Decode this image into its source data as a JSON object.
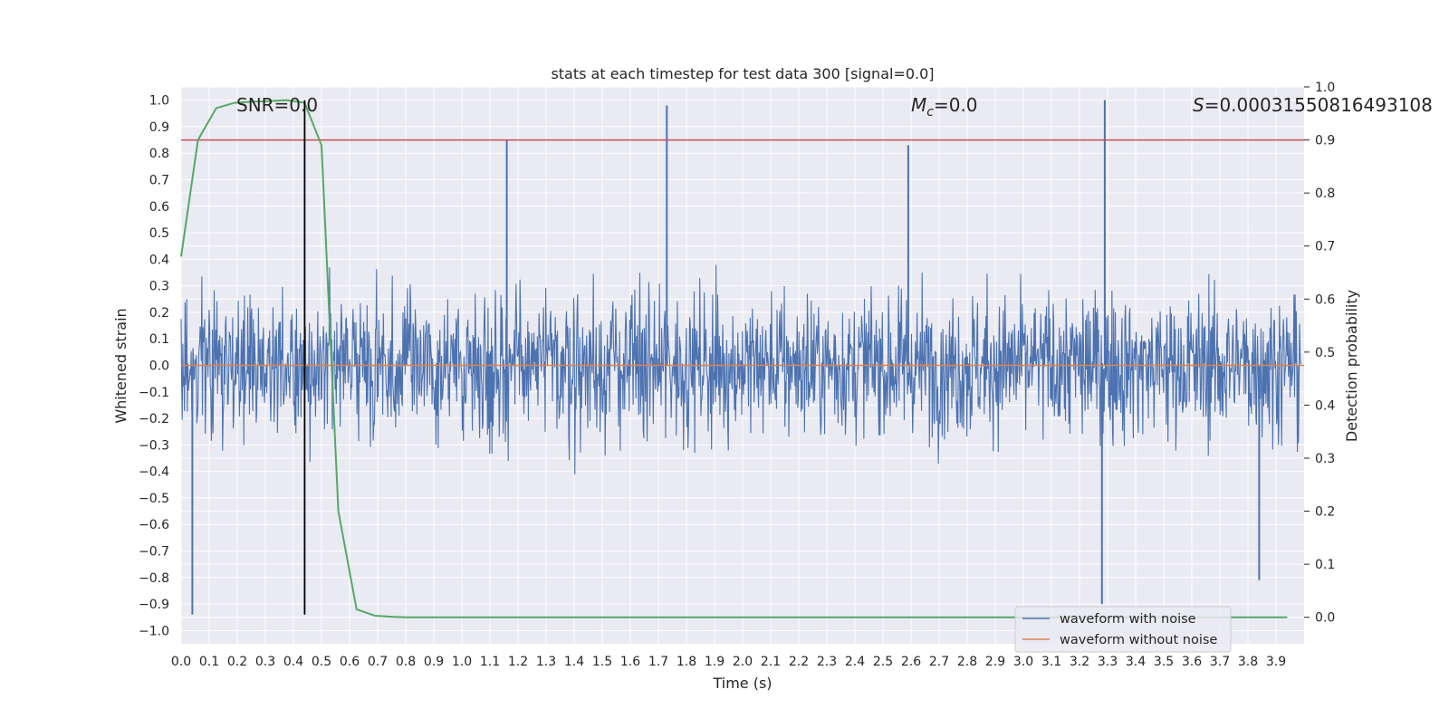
{
  "chart_data": {
    "type": "line",
    "title": "stats at each timestep for test data 300 [signal=0.0]",
    "xlabel": "Time (s)",
    "ylabel": "Whitened strain",
    "ylabel_right": "Detection probability",
    "xlim": [
      0,
      4.0
    ],
    "ylim": [
      -1.05,
      1.05
    ],
    "ylim_right": [
      -0.05,
      1.0
    ],
    "x_ticks": [
      0.0,
      0.1,
      0.2,
      0.3,
      0.4,
      0.5,
      0.6,
      0.7,
      0.8,
      0.9,
      1.0,
      1.1,
      1.2,
      1.3,
      1.4,
      1.5,
      1.6,
      1.7,
      1.8,
      1.9,
      2.0,
      2.1,
      2.2,
      2.3,
      2.4,
      2.5,
      2.6,
      2.7,
      2.8,
      2.9,
      3.0,
      3.1,
      3.2,
      3.3,
      3.4,
      3.5,
      3.6,
      3.7,
      3.8,
      3.9
    ],
    "x_tick_labels": [
      "0.0",
      "0.1",
      "0.2",
      "0.3",
      "0.4",
      "0.5",
      "0.6",
      "0.7",
      "0.8",
      "0.9",
      "1.0",
      "1.1",
      "1.2",
      "1.3",
      "1.4",
      "1.5",
      "1.6",
      "1.7",
      "1.8",
      "1.9",
      "2.0",
      "2.1",
      "2.2",
      "2.3",
      "2.4",
      "2.5",
      "2.6",
      "2.7",
      "2.8",
      "2.9",
      "3.0",
      "3.1",
      "3.2",
      "3.3",
      "3.4",
      "3.5",
      "3.6",
      "3.7",
      "3.8",
      "3.9"
    ],
    "y_ticks": [
      1.0,
      0.9,
      0.8,
      0.7,
      0.6,
      0.5,
      0.4,
      0.3,
      0.2,
      0.1,
      0.0,
      -0.1,
      -0.2,
      -0.3,
      -0.4,
      -0.5,
      -0.6,
      -0.7,
      -0.8,
      -0.9,
      -1.0
    ],
    "y_tick_labels": [
      "1.0",
      "0.9",
      "0.8",
      "0.7",
      "0.6",
      "0.5",
      "0.4",
      "0.3",
      "0.2",
      "0.1",
      "0.0",
      "−0.1",
      "−0.2",
      "−0.3",
      "−0.4",
      "−0.5",
      "−0.6",
      "−0.7",
      "−0.8",
      "−0.9",
      "−1.0"
    ],
    "y_ticks_right": [
      1.0,
      0.9,
      0.8,
      0.7,
      0.6,
      0.5,
      0.4,
      0.3,
      0.2,
      0.1,
      0.0
    ],
    "y_tick_labels_right": [
      "1.0",
      "0.9",
      "0.8",
      "0.7",
      "0.6",
      "0.5",
      "0.4",
      "0.3",
      "0.2",
      "0.1",
      "0.0"
    ],
    "grid": true,
    "legend_placement": "lower-right",
    "series": [
      {
        "name": "waveform with noise",
        "color": "#4c72b0",
        "axis": "left",
        "description_values": "dense noise, roughly within [-0.94, 1.0], sampled across 0-4 s",
        "notable_peaks": [
          {
            "x": 0.04,
            "y": -0.94
          },
          {
            "x": 1.16,
            "y": 0.85
          },
          {
            "x": 1.73,
            "y": 0.98
          },
          {
            "x": 2.59,
            "y": 0.83
          },
          {
            "x": 3.29,
            "y": 1.0
          },
          {
            "x": 3.28,
            "y": -0.9
          },
          {
            "x": 3.84,
            "y": -0.81
          }
        ]
      },
      {
        "name": "waveform without noise",
        "color": "#dd8452",
        "axis": "left",
        "constant": 0.0
      },
      {
        "color": "#55a868",
        "axis": "right",
        "x": [
          0.0,
          0.06,
          0.125,
          0.19,
          0.25,
          0.31,
          0.375,
          0.44,
          0.5,
          0.56,
          0.625,
          0.69,
          0.75,
          0.8,
          1.0,
          2.0,
          3.0,
          3.94
        ],
        "values": [
          0.68,
          0.9,
          0.96,
          0.97,
          0.972,
          0.973,
          0.975,
          0.97,
          0.89,
          0.2,
          0.015,
          0.003,
          0.001,
          0.0,
          0.0,
          0.0,
          0.0,
          0.0
        ]
      }
    ],
    "threshold": {
      "value": 0.9,
      "axis": "right",
      "color": "#c44e52"
    },
    "marker_line": {
      "x": 0.44,
      "y_range": [
        -0.94,
        1.0
      ],
      "color": "#000000"
    },
    "annotations": {
      "snr": "SNR=0.0",
      "mc_symbol": "M",
      "mc_sub": "c",
      "mc_value": "=0.0",
      "s_symbol": "S",
      "s_value": "=0.00031550816493108"
    },
    "legend": [
      "waveform with noise",
      "waveform without noise"
    ]
  }
}
